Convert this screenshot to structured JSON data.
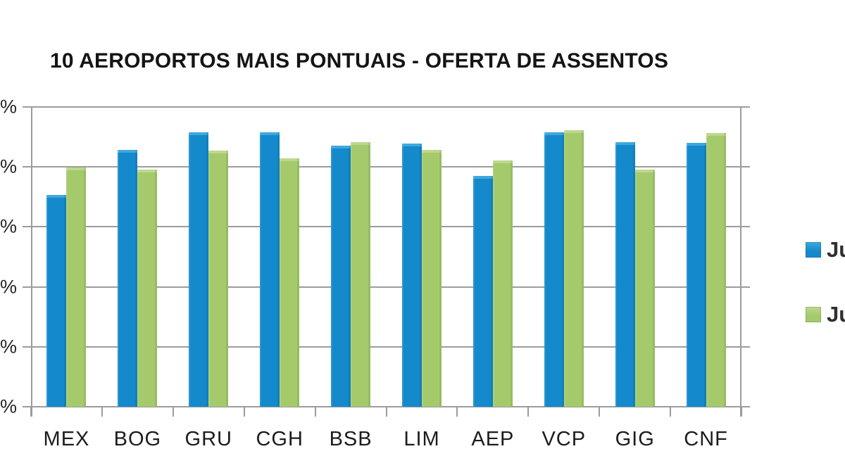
{
  "title": "10 AEROPORTOS MAIS PONTUAIS - OFERTA DE ASSENTOS",
  "colors": {
    "grid": "#9c9c9c",
    "series1": "#1489cb",
    "series1_highlight": "#3ea9dd",
    "series2": "#a4ca6b",
    "series2_highlight": "#bdd88e"
  },
  "legend": {
    "items": [
      {
        "label": "Ju",
        "color": "#1489cb",
        "highlight": "#3ea9dd"
      },
      {
        "label": "Ju",
        "color": "#a4ca6b",
        "highlight": "#bdd88e"
      }
    ],
    "position": "right",
    "clipped_by_image_edge": true
  },
  "chart_data": {
    "type": "bar",
    "title": "10 AEROPORTOS MAIS PONTUAIS - OFERTA DE ASSENTOS",
    "categories": [
      "MEX",
      "BOG",
      "GRU",
      "CGH",
      "BSB",
      "LIM",
      "AEP",
      "VCP",
      "GIG",
      "CNF"
    ],
    "series": [
      {
        "name": "Ju",
        "color": "#1489cb",
        "highlight": "#3ea9dd",
        "values": [
          3.53,
          4.28,
          4.58,
          4.58,
          4.35,
          4.39,
          3.85,
          4.58,
          4.41,
          4.4
        ]
      },
      {
        "name": "Ju",
        "color": "#a4ca6b",
        "highlight": "#bdd88e",
        "values": [
          3.99,
          3.95,
          4.27,
          4.14,
          4.41,
          4.28,
          4.11,
          4.61,
          3.96,
          4.57
        ]
      }
    ],
    "ylim": [
      0,
      5
    ],
    "value_units": "gridline units; numeric axis labels cropped off left edge, only '%' visible",
    "y_axis": {
      "tick_labels": [
        "%",
        "%",
        "%",
        "%",
        "%",
        "%"
      ]
    },
    "xlabel": "",
    "ylabel": "",
    "grid": true,
    "legend_position": "right"
  }
}
